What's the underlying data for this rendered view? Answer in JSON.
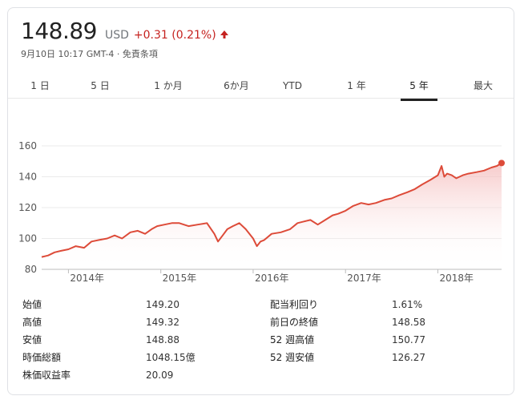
{
  "quote": {
    "price": "148.89",
    "currency": "USD",
    "change": "+0.31 (0.21%)",
    "arrow_icon": "arrow-up-icon",
    "meta": "9月10日 10:17 GMT-4 · 免責条項",
    "change_color": "#c5221f"
  },
  "tabs": [
    {
      "label": "1 日"
    },
    {
      "label": "5 日"
    },
    {
      "label": "1 か月"
    },
    {
      "label": "6か月"
    },
    {
      "label": "YTD"
    },
    {
      "label": "1 年"
    },
    {
      "label": "5 年"
    },
    {
      "label": "最大"
    }
  ],
  "active_tab": "5 年",
  "chart_data": {
    "type": "area",
    "title": "",
    "xlabel": "",
    "ylabel": "",
    "ylim": [
      80,
      160
    ],
    "yticks": [
      80,
      100,
      120,
      140,
      160
    ],
    "xtick_labels": [
      "2014年",
      "2015年",
      "2016年",
      "2017年",
      "2018年"
    ],
    "xticks": [
      2014.0,
      2015.0,
      2016.0,
      2017.0,
      2018.0
    ],
    "xlim": [
      2013.71,
      2018.69
    ],
    "grid": "horizontal",
    "line_color": "#dd4b39",
    "series": [
      {
        "x": [
          2013.71,
          2013.78,
          2013.85,
          2013.92,
          2014.0,
          2014.08,
          2014.17,
          2014.25,
          2014.33,
          2014.42,
          2014.5,
          2014.58,
          2014.67,
          2014.75,
          2014.83,
          2014.9,
          2014.96,
          2015.04,
          2015.12,
          2015.2,
          2015.3,
          2015.4,
          2015.5,
          2015.58,
          2015.62,
          2015.67,
          2015.72,
          2015.78,
          2015.85,
          2015.92,
          2016.0,
          2016.04,
          2016.08,
          2016.12,
          2016.2,
          2016.3,
          2016.4,
          2016.48,
          2016.55,
          2016.62,
          2016.7,
          2016.78,
          2016.86,
          2016.92,
          2017.0,
          2017.08,
          2017.17,
          2017.25,
          2017.33,
          2017.42,
          2017.5,
          2017.58,
          2017.67,
          2017.75,
          2017.83,
          2017.92,
          2018.0,
          2018.04,
          2018.07,
          2018.1,
          2018.15,
          2018.2,
          2018.27,
          2018.33,
          2018.42,
          2018.5,
          2018.58,
          2018.64,
          2018.69
        ],
        "y": [
          88,
          89,
          91,
          92,
          93,
          95,
          94,
          98,
          99,
          100,
          102,
          100,
          104,
          105,
          103,
          106,
          108,
          109,
          110,
          110,
          108,
          109,
          110,
          103,
          98,
          102,
          106,
          108,
          110,
          106,
          100,
          95,
          98,
          99,
          103,
          104,
          106,
          110,
          111,
          112,
          109,
          112,
          115,
          116,
          118,
          121,
          123,
          122,
          123,
          125,
          126,
          128,
          130,
          132,
          135,
          138,
          141,
          147,
          140,
          142,
          141,
          139,
          141,
          142,
          143,
          144,
          146,
          147,
          148.89
        ]
      }
    ]
  },
  "stats": {
    "left": [
      {
        "label": "始値",
        "value": "149.20"
      },
      {
        "label": "高値",
        "value": "149.32"
      },
      {
        "label": "安値",
        "value": "148.88"
      },
      {
        "label": "時価総額",
        "value": "1048.15億"
      },
      {
        "label": "株価収益率",
        "value": "20.09"
      }
    ],
    "right": [
      {
        "label": "配当利回り",
        "value": "1.61%"
      },
      {
        "label": "前日の終値",
        "value": "148.58"
      },
      {
        "label": "52 週高値",
        "value": "150.77"
      },
      {
        "label": "52 週安値",
        "value": "126.27"
      }
    ]
  }
}
